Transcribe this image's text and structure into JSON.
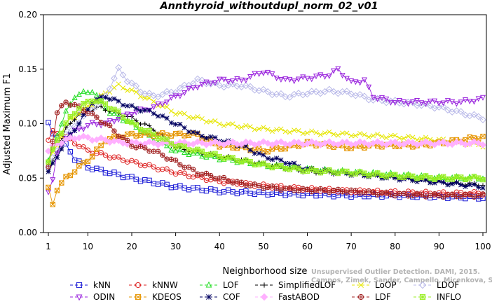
{
  "chart_data": {
    "type": "line",
    "title": "Annthyroid_withoutdupl_norm_02_v01",
    "xlabel": "Neighborhood size",
    "ylabel": "Adjusted Maximum F1",
    "xlim": [
      1,
      100
    ],
    "ylim": [
      0.0,
      0.2
    ],
    "x_ticks": [
      1,
      10,
      20,
      30,
      40,
      50,
      60,
      70,
      80,
      90,
      100
    ],
    "y_ticks": [
      "0.00",
      "0.05",
      "0.10",
      "0.15",
      "0.20"
    ],
    "credit": [
      "Unsupervised Outlier Detection. DAMI, 2015.",
      "Campos, Zimek, Sander, Campello, Micenkova, Schubert, Assent, Houle"
    ],
    "legend_position": "bottom",
    "series": [
      {
        "name": "kNN",
        "color": "#1a1ad6",
        "marker": "square",
        "points": [
          [
            1,
            0.1
          ],
          [
            2,
            0.09
          ],
          [
            3,
            0.084
          ],
          [
            4,
            0.085
          ],
          [
            5,
            0.08
          ],
          [
            7,
            0.068
          ],
          [
            10,
            0.06
          ],
          [
            15,
            0.055
          ],
          [
            20,
            0.05
          ],
          [
            25,
            0.046
          ],
          [
            30,
            0.042
          ],
          [
            40,
            0.038
          ],
          [
            50,
            0.036
          ],
          [
            60,
            0.035
          ],
          [
            70,
            0.034
          ],
          [
            80,
            0.034
          ],
          [
            90,
            0.033
          ],
          [
            100,
            0.032
          ]
        ]
      },
      {
        "name": "kNNW",
        "color": "#dd2222",
        "marker": "circle",
        "points": [
          [
            1,
            0.085
          ],
          [
            2,
            0.092
          ],
          [
            4,
            0.09
          ],
          [
            6,
            0.085
          ],
          [
            8,
            0.08
          ],
          [
            10,
            0.075
          ],
          [
            15,
            0.07
          ],
          [
            20,
            0.065
          ],
          [
            25,
            0.06
          ],
          [
            30,
            0.055
          ],
          [
            40,
            0.047
          ],
          [
            50,
            0.043
          ],
          [
            60,
            0.04
          ],
          [
            70,
            0.038
          ],
          [
            80,
            0.037
          ],
          [
            90,
            0.036
          ],
          [
            100,
            0.036
          ]
        ]
      },
      {
        "name": "LOF",
        "color": "#22dd22",
        "marker": "triangle",
        "points": [
          [
            1,
            0.065
          ],
          [
            3,
            0.09
          ],
          [
            5,
            0.11
          ],
          [
            7,
            0.125
          ],
          [
            9,
            0.128
          ],
          [
            11,
            0.13
          ],
          [
            13,
            0.12
          ],
          [
            15,
            0.11
          ],
          [
            20,
            0.1
          ],
          [
            25,
            0.085
          ],
          [
            30,
            0.075
          ],
          [
            40,
            0.068
          ],
          [
            50,
            0.062
          ],
          [
            60,
            0.058
          ],
          [
            70,
            0.055
          ],
          [
            80,
            0.053
          ],
          [
            90,
            0.05
          ],
          [
            100,
            0.05
          ]
        ]
      },
      {
        "name": "SimplifiedLOF",
        "color": "#000000",
        "marker": "plus",
        "points": [
          [
            1,
            0.055
          ],
          [
            3,
            0.075
          ],
          [
            5,
            0.095
          ],
          [
            7,
            0.105
          ],
          [
            9,
            0.112
          ],
          [
            11,
            0.113
          ],
          [
            13,
            0.115
          ],
          [
            15,
            0.112
          ],
          [
            20,
            0.105
          ],
          [
            25,
            0.095
          ],
          [
            30,
            0.078
          ],
          [
            40,
            0.07
          ],
          [
            50,
            0.063
          ],
          [
            60,
            0.056
          ],
          [
            70,
            0.054
          ],
          [
            80,
            0.05
          ],
          [
            90,
            0.046
          ],
          [
            100,
            0.044
          ]
        ]
      },
      {
        "name": "LoOP",
        "color": "#e6e600",
        "marker": "x",
        "points": [
          [
            1,
            0.065
          ],
          [
            3,
            0.08
          ],
          [
            5,
            0.1
          ],
          [
            8,
            0.11
          ],
          [
            11,
            0.118
          ],
          [
            14,
            0.128
          ],
          [
            17,
            0.135
          ],
          [
            20,
            0.13
          ],
          [
            25,
            0.12
          ],
          [
            30,
            0.11
          ],
          [
            40,
            0.1
          ],
          [
            50,
            0.095
          ],
          [
            60,
            0.092
          ],
          [
            70,
            0.09
          ],
          [
            80,
            0.088
          ],
          [
            90,
            0.085
          ],
          [
            100,
            0.08
          ]
        ]
      },
      {
        "name": "LDOF",
        "color": "#b8b8e8",
        "marker": "diamond",
        "points": [
          [
            1,
            0.06
          ],
          [
            5,
            0.09
          ],
          [
            10,
            0.11
          ],
          [
            14,
            0.125
          ],
          [
            17,
            0.15
          ],
          [
            19,
            0.14
          ],
          [
            22,
            0.13
          ],
          [
            25,
            0.125
          ],
          [
            30,
            0.13
          ],
          [
            35,
            0.14
          ],
          [
            40,
            0.135
          ],
          [
            45,
            0.135
          ],
          [
            50,
            0.13
          ],
          [
            55,
            0.125
          ],
          [
            60,
            0.128
          ],
          [
            65,
            0.13
          ],
          [
            70,
            0.128
          ],
          [
            75,
            0.122
          ],
          [
            80,
            0.12
          ],
          [
            85,
            0.118
          ],
          [
            90,
            0.115
          ],
          [
            95,
            0.11
          ],
          [
            100,
            0.105
          ]
        ]
      },
      {
        "name": "ODIN",
        "color": "#9922dd",
        "marker": "triangle-down",
        "points": [
          [
            1,
            0.038
          ],
          [
            2,
            0.05
          ],
          [
            3,
            0.072
          ],
          [
            5,
            0.088
          ],
          [
            8,
            0.095
          ],
          [
            11,
            0.1
          ],
          [
            14,
            0.1
          ],
          [
            17,
            0.105
          ],
          [
            20,
            0.11
          ],
          [
            25,
            0.115
          ],
          [
            30,
            0.125
          ],
          [
            35,
            0.135
          ],
          [
            40,
            0.14
          ],
          [
            45,
            0.14
          ],
          [
            50,
            0.148
          ],
          [
            55,
            0.14
          ],
          [
            60,
            0.142
          ],
          [
            65,
            0.145
          ],
          [
            67,
            0.15
          ],
          [
            70,
            0.138
          ],
          [
            73,
            0.14
          ],
          [
            75,
            0.125
          ],
          [
            80,
            0.12
          ],
          [
            85,
            0.12
          ],
          [
            90,
            0.12
          ],
          [
            95,
            0.12
          ],
          [
            100,
            0.123
          ]
        ]
      },
      {
        "name": "KDEOS",
        "color": "#e69500",
        "marker": "square-x",
        "points": [
          [
            1,
            0.04
          ],
          [
            2,
            0.026
          ],
          [
            3,
            0.04
          ],
          [
            5,
            0.05
          ],
          [
            8,
            0.06
          ],
          [
            11,
            0.07
          ],
          [
            14,
            0.085
          ],
          [
            17,
            0.088
          ],
          [
            20,
            0.09
          ],
          [
            25,
            0.09
          ],
          [
            30,
            0.09
          ],
          [
            35,
            0.09
          ],
          [
            40,
            0.08
          ],
          [
            45,
            0.078
          ],
          [
            50,
            0.075
          ],
          [
            55,
            0.078
          ],
          [
            60,
            0.082
          ],
          [
            65,
            0.08
          ],
          [
            70,
            0.078
          ],
          [
            75,
            0.08
          ],
          [
            80,
            0.08
          ],
          [
            85,
            0.08
          ],
          [
            90,
            0.082
          ],
          [
            95,
            0.085
          ],
          [
            100,
            0.088
          ]
        ]
      },
      {
        "name": "COF",
        "color": "#000060",
        "marker": "star",
        "points": [
          [
            1,
            0.055
          ],
          [
            3,
            0.07
          ],
          [
            5,
            0.085
          ],
          [
            8,
            0.1
          ],
          [
            11,
            0.12
          ],
          [
            14,
            0.125
          ],
          [
            17,
            0.12
          ],
          [
            20,
            0.115
          ],
          [
            25,
            0.11
          ],
          [
            30,
            0.1
          ],
          [
            35,
            0.09
          ],
          [
            40,
            0.085
          ],
          [
            45,
            0.08
          ],
          [
            50,
            0.07
          ],
          [
            55,
            0.065
          ],
          [
            60,
            0.058
          ],
          [
            65,
            0.056
          ],
          [
            70,
            0.054
          ],
          [
            75,
            0.052
          ],
          [
            80,
            0.05
          ],
          [
            85,
            0.048
          ],
          [
            90,
            0.046
          ],
          [
            95,
            0.044
          ],
          [
            100,
            0.042
          ]
        ]
      },
      {
        "name": "FastABOD",
        "color": "#ffb0ff",
        "marker": "diamond-filled",
        "points": [
          [
            1,
            0.075
          ],
          [
            3,
            0.082
          ],
          [
            5,
            0.085
          ],
          [
            8,
            0.088
          ],
          [
            11,
            0.086
          ],
          [
            14,
            0.085
          ],
          [
            17,
            0.083
          ],
          [
            20,
            0.082
          ],
          [
            25,
            0.082
          ],
          [
            30,
            0.082
          ],
          [
            40,
            0.082
          ],
          [
            50,
            0.082
          ],
          [
            60,
            0.082
          ],
          [
            70,
            0.082
          ],
          [
            80,
            0.082
          ],
          [
            90,
            0.082
          ],
          [
            100,
            0.082
          ]
        ]
      },
      {
        "name": "LDF",
        "color": "#a02020",
        "marker": "circle-plus",
        "points": [
          [
            1,
            0.06
          ],
          [
            3,
            0.11
          ],
          [
            5,
            0.12
          ],
          [
            8,
            0.115
          ],
          [
            11,
            0.108
          ],
          [
            14,
            0.1
          ],
          [
            17,
            0.09
          ],
          [
            20,
            0.08
          ],
          [
            25,
            0.075
          ],
          [
            30,
            0.065
          ],
          [
            35,
            0.055
          ],
          [
            40,
            0.05
          ],
          [
            45,
            0.045
          ],
          [
            50,
            0.042
          ],
          [
            55,
            0.04
          ],
          [
            60,
            0.039
          ],
          [
            70,
            0.038
          ],
          [
            80,
            0.035
          ],
          [
            90,
            0.034
          ],
          [
            100,
            0.034
          ]
        ]
      },
      {
        "name": "INFLO",
        "color": "#99ee22",
        "marker": "square-star",
        "points": [
          [
            1,
            0.065
          ],
          [
            3,
            0.085
          ],
          [
            5,
            0.1
          ],
          [
            8,
            0.115
          ],
          [
            11,
            0.122
          ],
          [
            14,
            0.118
          ],
          [
            17,
            0.11
          ],
          [
            20,
            0.1
          ],
          [
            25,
            0.09
          ],
          [
            30,
            0.08
          ],
          [
            40,
            0.07
          ],
          [
            50,
            0.062
          ],
          [
            60,
            0.057
          ],
          [
            70,
            0.055
          ],
          [
            80,
            0.052
          ],
          [
            90,
            0.05
          ],
          [
            100,
            0.05
          ]
        ]
      }
    ]
  }
}
